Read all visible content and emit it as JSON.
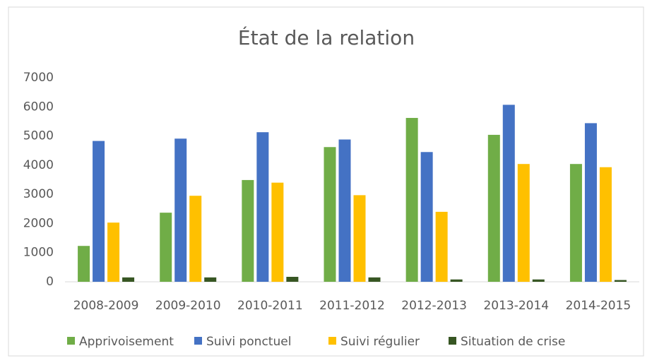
{
  "chart_data": {
    "type": "bar",
    "title": "État de la relation",
    "categories": [
      "2008-2009",
      "2009-2010",
      "2010-2011",
      "2011-2012",
      "2012-2013",
      "2013-2014",
      "2014-2015"
    ],
    "series": [
      {
        "name": "Apprivoisement",
        "color": "#70ad47",
        "values": [
          1230,
          2370,
          3490,
          4620,
          5620,
          5040,
          4040
        ]
      },
      {
        "name": "Suivi ponctuel",
        "color": "#4472c4",
        "values": [
          4830,
          4910,
          5130,
          4880,
          4450,
          6070,
          5440
        ]
      },
      {
        "name": "Suivi régulier",
        "color": "#ffc000",
        "values": [
          2030,
          2950,
          3400,
          2970,
          2400,
          4040,
          3930
        ]
      },
      {
        "name": "Situation de crise",
        "color": "#375623",
        "values": [
          150,
          150,
          170,
          150,
          80,
          80,
          60
        ]
      }
    ],
    "ylim": [
      0,
      7000
    ],
    "yticks": [
      0,
      1000,
      2000,
      3000,
      4000,
      5000,
      6000,
      7000
    ],
    "grid": false,
    "legend": "bottom"
  }
}
